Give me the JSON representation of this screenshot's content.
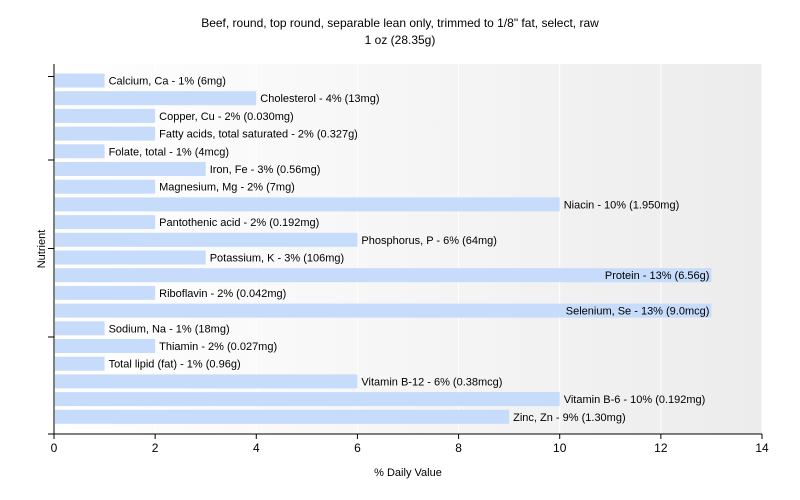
{
  "chart_data": {
    "type": "bar",
    "orientation": "horizontal",
    "title": "Beef, round, top round, separable lean only, trimmed to 1/8\" fat, select, raw",
    "subtitle": "1 oz (28.35g)",
    "xlabel": "% Daily Value",
    "ylabel": "Nutrient",
    "xlim": [
      0,
      14
    ],
    "xticks": [
      0,
      2,
      4,
      6,
      8,
      10,
      12,
      14
    ],
    "grid": true,
    "bar_color": "#c6dcfa",
    "categories": [
      "Calcium, Ca",
      "Cholesterol",
      "Copper, Cu",
      "Fatty acids, total saturated",
      "Folate, total",
      "Iron, Fe",
      "Magnesium, Mg",
      "Niacin",
      "Pantothenic acid",
      "Phosphorus, P",
      "Potassium, K",
      "Protein",
      "Riboflavin",
      "Selenium, Se",
      "Sodium, Na",
      "Thiamin",
      "Total lipid (fat)",
      "Vitamin B-12",
      "Vitamin B-6",
      "Zinc, Zn"
    ],
    "values": [
      1,
      4,
      2,
      2,
      1,
      3,
      2,
      10,
      2,
      6,
      3,
      13,
      2,
      13,
      1,
      2,
      1,
      6,
      10,
      9
    ],
    "labels": [
      "Calcium, Ca - 1% (6mg)",
      "Cholesterol - 4% (13mg)",
      "Copper, Cu - 2% (0.030mg)",
      "Fatty acids, total saturated - 2% (0.327g)",
      "Folate, total - 1% (4mcg)",
      "Iron, Fe - 3% (0.56mg)",
      "Magnesium, Mg - 2% (7mg)",
      "Niacin - 10% (1.950mg)",
      "Pantothenic acid - 2% (0.192mg)",
      "Phosphorus, P - 6% (64mg)",
      "Potassium, K - 3% (106mg)",
      "Protein - 13% (6.56g)",
      "Riboflavin - 2% (0.042mg)",
      "Selenium, Se - 13% (9.0mcg)",
      "Sodium, Na - 1% (18mg)",
      "Thiamin - 2% (0.027mg)",
      "Total lipid (fat) - 1% (0.96g)",
      "Vitamin B-12 - 6% (0.38mcg)",
      "Vitamin B-6 - 10% (0.192mg)",
      "Zinc, Zn - 9% (1.30mg)"
    ]
  }
}
